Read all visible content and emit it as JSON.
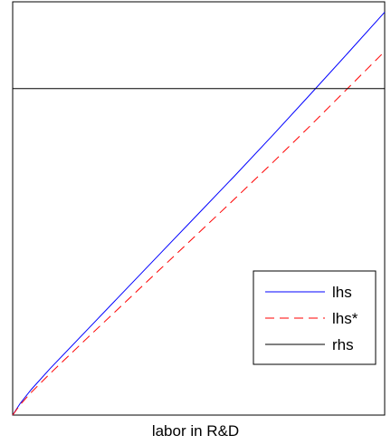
{
  "chart_data": {
    "type": "line",
    "title": "",
    "xlabel": "labor in R&D",
    "ylabel": "",
    "xlim": [
      0,
      1
    ],
    "ylim": [
      0,
      1
    ],
    "grid": false,
    "ticks": false,
    "legend_position": "bottom-right",
    "series": [
      {
        "name": "lhs",
        "color": "#0000ff",
        "dash": "solid",
        "x": [
          0,
          0.02,
          0.05,
          0.1,
          0.2,
          0.3,
          0.4,
          0.5,
          0.6,
          0.7,
          0.8,
          0.9,
          1.0
        ],
        "y": [
          0,
          0.028,
          0.062,
          0.112,
          0.206,
          0.3,
          0.394,
          0.488,
          0.582,
          0.678,
          0.776,
          0.875,
          0.975
        ]
      },
      {
        "name": "lhs*",
        "color": "#ff0000",
        "dash": "dashed",
        "x": [
          0,
          0.02,
          0.05,
          0.1,
          0.2,
          0.3,
          0.4,
          0.5,
          0.6,
          0.7,
          0.8,
          0.9,
          1.0
        ],
        "y": [
          0,
          0.025,
          0.055,
          0.1,
          0.186,
          0.271,
          0.356,
          0.441,
          0.526,
          0.612,
          0.7,
          0.79,
          0.88
        ]
      },
      {
        "name": "rhs",
        "color": "#000000",
        "dash": "solid",
        "x": [
          0,
          1
        ],
        "y": [
          0.79,
          0.79
        ]
      }
    ]
  }
}
